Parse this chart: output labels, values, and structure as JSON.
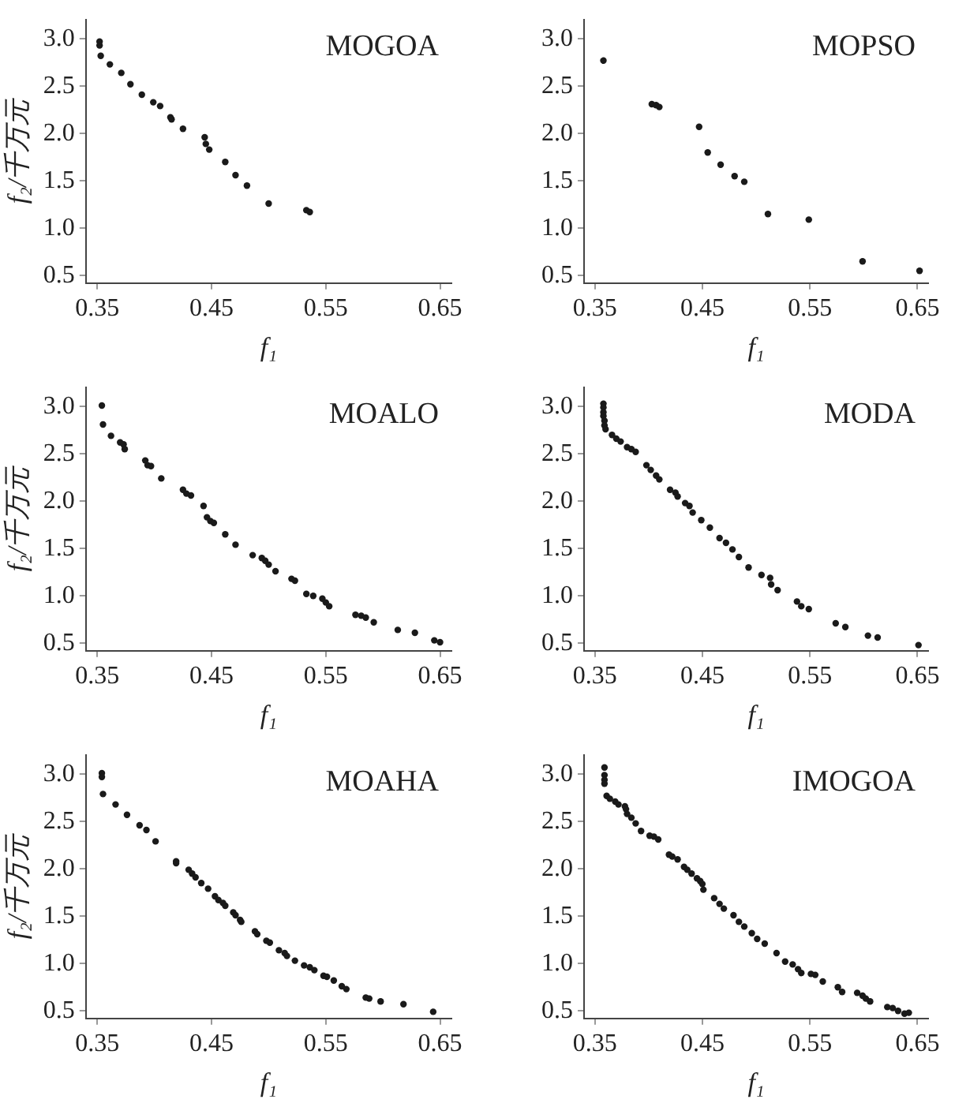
{
  "chart_data": [
    {
      "type": "scatter",
      "title": "MOGOA",
      "xlabel": "f₁",
      "ylabel": "f₂/千万元",
      "xlim": [
        0.34,
        0.66
      ],
      "ylim": [
        0.42,
        3.2
      ],
      "xticks": [
        0.35,
        0.45,
        0.55,
        0.65
      ],
      "yticks": [
        {
          "value": 0.5,
          "label": "0.5"
        },
        {
          "value": 1,
          "label": "1.0"
        },
        {
          "value": 1.5,
          "label": "1.5"
        },
        {
          "value": 2,
          "label": "2.0"
        },
        {
          "value": 2.5,
          "label": "2.5"
        },
        {
          "value": 3,
          "label": "3.0"
        }
      ],
      "grid": false,
      "legend": false,
      "marker": "circle",
      "series": [
        {
          "color": "#1a1a1a",
          "x": [
            0.352,
            0.352,
            0.353,
            0.361,
            0.371,
            0.379,
            0.389,
            0.399,
            0.405,
            0.414,
            0.415,
            0.425,
            0.444,
            0.445,
            0.448,
            0.462,
            0.471,
            0.481,
            0.5,
            0.533,
            0.536
          ],
          "values": [
            2.97,
            2.93,
            2.82,
            2.73,
            2.64,
            2.52,
            2.41,
            2.33,
            2.29,
            2.17,
            2.15,
            2.05,
            1.96,
            1.89,
            1.83,
            1.7,
            1.56,
            1.45,
            1.26,
            1.19,
            1.17
          ]
        }
      ]
    },
    {
      "type": "scatter",
      "title": "MOPSO",
      "xlabel": "f₁",
      "xlim": [
        0.34,
        0.66
      ],
      "ylim": [
        0.42,
        3.2
      ],
      "xticks": [
        0.35,
        0.45,
        0.55,
        0.65
      ],
      "yticks": [
        {
          "value": 0.5,
          "label": "0.5"
        },
        {
          "value": 1,
          "label": "1.0"
        },
        {
          "value": 1.5,
          "label": "1.5"
        },
        {
          "value": 2,
          "label": "2.0"
        },
        {
          "value": 2.5,
          "label": "2.5"
        },
        {
          "value": 3,
          "label": "3.0"
        }
      ],
      "grid": false,
      "legend": false,
      "marker": "circle",
      "series": [
        {
          "color": "#1a1a1a",
          "x": [
            0.358,
            0.403,
            0.407,
            0.41,
            0.447,
            0.455,
            0.467,
            0.48,
            0.489,
            0.511,
            0.549,
            0.599,
            0.652
          ],
          "values": [
            2.77,
            2.31,
            2.3,
            2.28,
            2.07,
            1.8,
            1.67,
            1.55,
            1.49,
            1.15,
            1.09,
            0.65,
            0.55
          ]
        }
      ]
    },
    {
      "type": "scatter",
      "title": "MOALO",
      "xlabel": "f₁",
      "ylabel": "f₂/千万元",
      "xlim": [
        0.34,
        0.66
      ],
      "ylim": [
        0.42,
        3.2
      ],
      "xticks": [
        0.35,
        0.45,
        0.55,
        0.65
      ],
      "yticks": [
        {
          "value": 0.5,
          "label": "0.5"
        },
        {
          "value": 1,
          "label": "1.0"
        },
        {
          "value": 1.5,
          "label": "1.5"
        },
        {
          "value": 2,
          "label": "2.0"
        },
        {
          "value": 2.5,
          "label": "2.5"
        },
        {
          "value": 3,
          "label": "3.0"
        }
      ],
      "grid": false,
      "legend": false,
      "marker": "circle",
      "series": [
        {
          "color": "#1a1a1a",
          "x": [
            0.354,
            0.355,
            0.362,
            0.37,
            0.373,
            0.374,
            0.392,
            0.394,
            0.397,
            0.406,
            0.425,
            0.428,
            0.432,
            0.443,
            0.446,
            0.449,
            0.452,
            0.462,
            0.471,
            0.486,
            0.494,
            0.497,
            0.5,
            0.506,
            0.52,
            0.523,
            0.533,
            0.539,
            0.547,
            0.55,
            0.553,
            0.576,
            0.581,
            0.585,
            0.592,
            0.613,
            0.628,
            0.645,
            0.65
          ],
          "values": [
            3.01,
            2.81,
            2.69,
            2.62,
            2.6,
            2.55,
            2.43,
            2.38,
            2.37,
            2.24,
            2.12,
            2.08,
            2.06,
            1.95,
            1.83,
            1.79,
            1.77,
            1.65,
            1.54,
            1.43,
            1.4,
            1.37,
            1.33,
            1.26,
            1.18,
            1.16,
            1.02,
            1.0,
            0.97,
            0.93,
            0.89,
            0.8,
            0.79,
            0.77,
            0.72,
            0.64,
            0.61,
            0.53,
            0.51
          ]
        }
      ]
    },
    {
      "type": "scatter",
      "title": "MODA",
      "xlabel": "f₁",
      "xlim": [
        0.34,
        0.66
      ],
      "ylim": [
        0.42,
        3.2
      ],
      "xticks": [
        0.35,
        0.45,
        0.55,
        0.65
      ],
      "yticks": [
        {
          "value": 0.5,
          "label": "0.5"
        },
        {
          "value": 1,
          "label": "1.0"
        },
        {
          "value": 1.5,
          "label": "1.5"
        },
        {
          "value": 2,
          "label": "2.0"
        },
        {
          "value": 2.5,
          "label": "2.5"
        },
        {
          "value": 3,
          "label": "3.0"
        }
      ],
      "grid": false,
      "legend": false,
      "marker": "circle",
      "series": [
        {
          "color": "#1a1a1a",
          "x": [
            0.358,
            0.358,
            0.358,
            0.358,
            0.359,
            0.359,
            0.36,
            0.366,
            0.37,
            0.374,
            0.38,
            0.384,
            0.388,
            0.398,
            0.402,
            0.407,
            0.41,
            0.42,
            0.425,
            0.427,
            0.434,
            0.438,
            0.441,
            0.449,
            0.457,
            0.466,
            0.472,
            0.478,
            0.484,
            0.493,
            0.505,
            0.513,
            0.514,
            0.52,
            0.538,
            0.542,
            0.549,
            0.574,
            0.583,
            0.604,
            0.613,
            0.651
          ],
          "values": [
            3.03,
            2.99,
            2.94,
            2.9,
            2.85,
            2.8,
            2.76,
            2.7,
            2.66,
            2.63,
            2.57,
            2.55,
            2.52,
            2.38,
            2.33,
            2.27,
            2.23,
            2.12,
            2.09,
            2.05,
            1.98,
            1.95,
            1.88,
            1.8,
            1.72,
            1.61,
            1.56,
            1.49,
            1.41,
            1.3,
            1.22,
            1.19,
            1.12,
            1.06,
            0.94,
            0.89,
            0.86,
            0.71,
            0.67,
            0.58,
            0.56,
            0.48
          ]
        }
      ]
    },
    {
      "type": "scatter",
      "title": "MOAHA",
      "xlabel": "f₁",
      "ylabel": "f₂/千万元",
      "xlim": [
        0.34,
        0.66
      ],
      "ylim": [
        0.42,
        3.2
      ],
      "xticks": [
        0.35,
        0.45,
        0.55,
        0.65
      ],
      "yticks": [
        {
          "value": 0.5,
          "label": "0.5"
        },
        {
          "value": 1,
          "label": "1.0"
        },
        {
          "value": 1.5,
          "label": "1.5"
        },
        {
          "value": 2,
          "label": "2.0"
        },
        {
          "value": 2.5,
          "label": "2.5"
        },
        {
          "value": 3,
          "label": "3.0"
        }
      ],
      "grid": false,
      "legend": false,
      "marker": "circle",
      "series": [
        {
          "color": "#1a1a1a",
          "x": [
            0.354,
            0.354,
            0.355,
            0.366,
            0.376,
            0.387,
            0.393,
            0.401,
            0.419,
            0.419,
            0.43,
            0.433,
            0.436,
            0.441,
            0.447,
            0.453,
            0.456,
            0.46,
            0.462,
            0.469,
            0.471,
            0.475,
            0.476,
            0.488,
            0.49,
            0.498,
            0.501,
            0.509,
            0.514,
            0.516,
            0.523,
            0.531,
            0.536,
            0.54,
            0.548,
            0.551,
            0.557,
            0.564,
            0.568,
            0.585,
            0.588,
            0.598,
            0.618,
            0.644
          ],
          "values": [
            3.01,
            2.97,
            2.79,
            2.68,
            2.57,
            2.46,
            2.41,
            2.29,
            2.08,
            2.06,
            1.99,
            1.95,
            1.91,
            1.85,
            1.79,
            1.71,
            1.67,
            1.64,
            1.61,
            1.54,
            1.51,
            1.46,
            1.44,
            1.34,
            1.31,
            1.24,
            1.22,
            1.14,
            1.11,
            1.08,
            1.03,
            0.98,
            0.96,
            0.93,
            0.87,
            0.86,
            0.82,
            0.76,
            0.73,
            0.64,
            0.63,
            0.6,
            0.57,
            0.49
          ]
        }
      ]
    },
    {
      "type": "scatter",
      "title": "IMOGOA",
      "xlabel": "f₁",
      "xlim": [
        0.34,
        0.66
      ],
      "ylim": [
        0.42,
        3.2
      ],
      "xticks": [
        0.35,
        0.45,
        0.55,
        0.65
      ],
      "yticks": [
        {
          "value": 0.5,
          "label": "0.5"
        },
        {
          "value": 1,
          "label": "1.0"
        },
        {
          "value": 1.5,
          "label": "1.5"
        },
        {
          "value": 2,
          "label": "2.0"
        },
        {
          "value": 2.5,
          "label": "2.5"
        },
        {
          "value": 3,
          "label": "3.0"
        }
      ],
      "grid": false,
      "legend": false,
      "marker": "circle",
      "series": [
        {
          "color": "#1a1a1a",
          "x": [
            0.359,
            0.359,
            0.359,
            0.359,
            0.361,
            0.364,
            0.369,
            0.372,
            0.378,
            0.379,
            0.38,
            0.384,
            0.388,
            0.393,
            0.401,
            0.405,
            0.409,
            0.419,
            0.422,
            0.427,
            0.433,
            0.436,
            0.44,
            0.445,
            0.448,
            0.45,
            0.451,
            0.461,
            0.466,
            0.47,
            0.479,
            0.484,
            0.489,
            0.496,
            0.501,
            0.508,
            0.519,
            0.527,
            0.534,
            0.539,
            0.542,
            0.551,
            0.555,
            0.562,
            0.576,
            0.58,
            0.594,
            0.599,
            0.602,
            0.606,
            0.622,
            0.627,
            0.632,
            0.638,
            0.642
          ],
          "values": [
            3.07,
            2.99,
            2.94,
            2.9,
            2.77,
            2.74,
            2.71,
            2.68,
            2.66,
            2.63,
            2.58,
            2.54,
            2.48,
            2.4,
            2.35,
            2.34,
            2.31,
            2.15,
            2.13,
            2.1,
            2.02,
            1.99,
            1.95,
            1.9,
            1.87,
            1.84,
            1.78,
            1.69,
            1.63,
            1.58,
            1.51,
            1.44,
            1.39,
            1.32,
            1.26,
            1.21,
            1.11,
            1.02,
            0.99,
            0.94,
            0.9,
            0.89,
            0.88,
            0.81,
            0.75,
            0.7,
            0.69,
            0.66,
            0.63,
            0.6,
            0.54,
            0.53,
            0.5,
            0.47,
            0.48
          ]
        }
      ]
    }
  ]
}
